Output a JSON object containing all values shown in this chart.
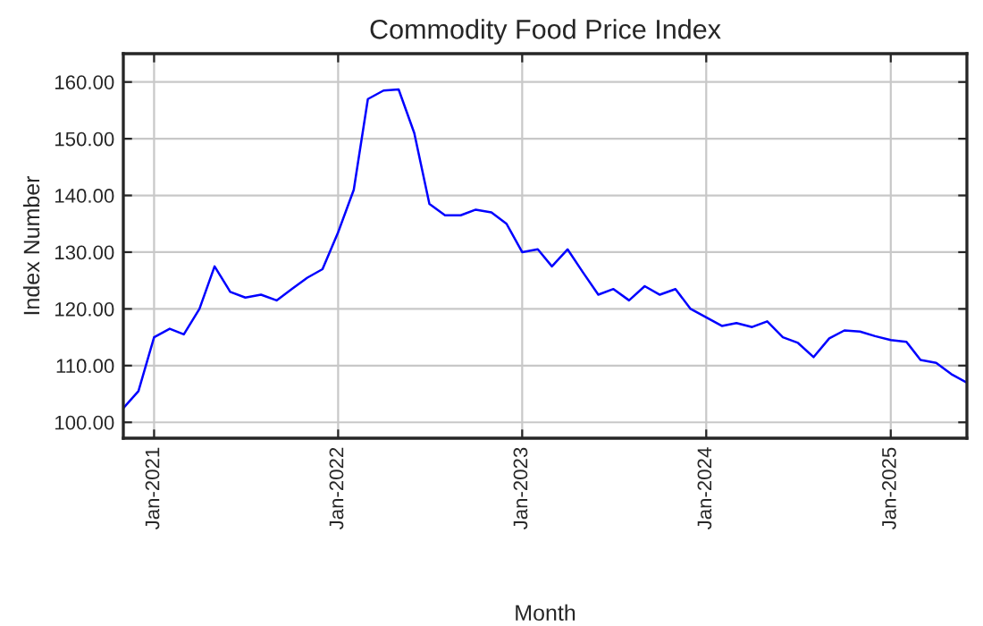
{
  "chart_data": {
    "type": "line",
    "title": "Commodity Food Price Index",
    "xlabel": "Month",
    "ylabel": "Index Number",
    "x": [
      "2020-11",
      "2020-12",
      "2021-01",
      "2021-02",
      "2021-03",
      "2021-04",
      "2021-05",
      "2021-06",
      "2021-07",
      "2021-08",
      "2021-09",
      "2021-10",
      "2021-11",
      "2021-12",
      "2022-01",
      "2022-02",
      "2022-03",
      "2022-04",
      "2022-05",
      "2022-06",
      "2022-07",
      "2022-08",
      "2022-09",
      "2022-10",
      "2022-11",
      "2022-12",
      "2023-01",
      "2023-02",
      "2023-03",
      "2023-04",
      "2023-05",
      "2023-06",
      "2023-07",
      "2023-08",
      "2023-09",
      "2023-10",
      "2023-11",
      "2023-12",
      "2024-01",
      "2024-02",
      "2024-03",
      "2024-04",
      "2024-05",
      "2024-06",
      "2024-07",
      "2024-08",
      "2024-09",
      "2024-10",
      "2024-11",
      "2024-12",
      "2025-01",
      "2025-02",
      "2025-03",
      "2025-04",
      "2025-05",
      "2025-06"
    ],
    "series": [
      {
        "color": "#0000ff",
        "values": [
          102.5,
          105.5,
          115,
          116.5,
          115.5,
          120,
          127.5,
          123,
          122,
          122.5,
          121.5,
          123.5,
          125.5,
          127,
          133.5,
          141,
          157,
          158.5,
          158.7,
          151,
          138.5,
          136.5,
          136.5,
          137.5,
          137,
          135,
          130,
          130.5,
          127.5,
          130.5,
          126.5,
          122.5,
          123.5,
          121.5,
          124,
          122.5,
          123.5,
          120,
          118.5,
          117,
          117.5,
          116.8,
          117.8,
          115,
          114,
          111.5,
          114.8,
          116.2,
          116,
          115.2,
          114.5,
          114.2,
          111,
          110.5,
          108.5,
          107
        ]
      }
    ],
    "xlim": [
      "2020-11",
      "2025-06"
    ],
    "xticks": [
      {
        "value": "2021-01",
        "label": "Jan-2021"
      },
      {
        "value": "2022-01",
        "label": "Jan-2022"
      },
      {
        "value": "2023-01",
        "label": "Jan-2023"
      },
      {
        "value": "2024-01",
        "label": "Jan-2024"
      },
      {
        "value": "2025-01",
        "label": "Jan-2025"
      }
    ],
    "ylim": [
      97.2,
      165
    ],
    "yticks": [
      {
        "value": 100,
        "label": "100.00"
      },
      {
        "value": 110,
        "label": "110.00"
      },
      {
        "value": 120,
        "label": "120.00"
      },
      {
        "value": 130,
        "label": "130.00"
      },
      {
        "value": 140,
        "label": "140.00"
      },
      {
        "value": 150,
        "label": "150.00"
      },
      {
        "value": 160,
        "label": "160.00"
      }
    ],
    "grid": true,
    "legend": false,
    "marker": "none",
    "line_style": "solid"
  }
}
